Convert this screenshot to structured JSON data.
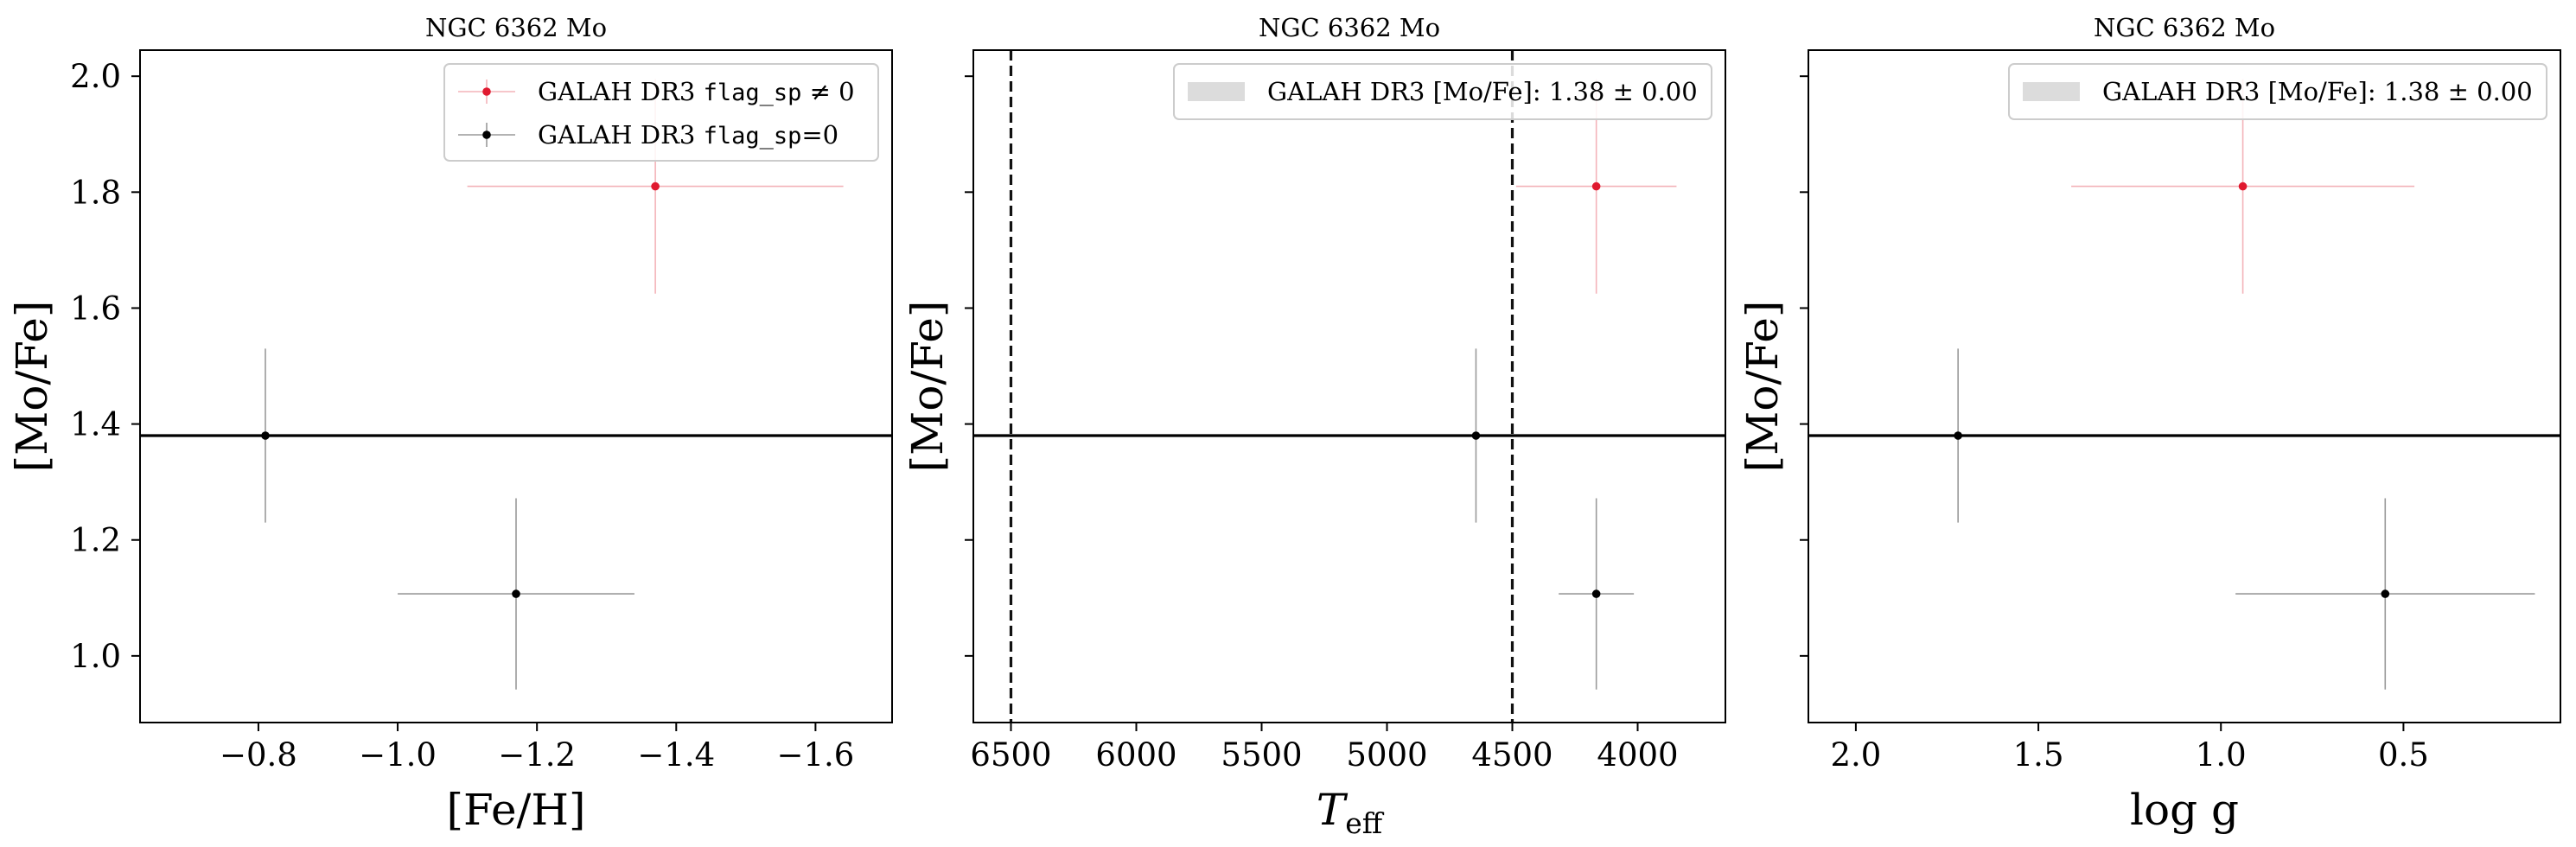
{
  "colors": {
    "flagged": "#e0192f",
    "flagged_bar": "#f3b3b9",
    "unflagged": "#000000",
    "unflagged_bar": "#9a9a9a",
    "band": "#dcdcdc",
    "axis": "#000000"
  },
  "chart_data": [
    {
      "type": "scatter",
      "title": "NGC 6362 Mo",
      "xlabel": "[Fe/H]",
      "ylabel": "[Mo/Fe]",
      "xlim": [
        -0.63,
        -1.71
      ],
      "ylim": [
        0.885,
        2.045
      ],
      "xticks": [
        -0.8,
        -1.0,
        -1.2,
        -1.4,
        -1.6
      ],
      "xtick_labels": [
        "−0.8",
        "−1.0",
        "−1.2",
        "−1.4",
        "−1.6"
      ],
      "yticks": [
        1.0,
        1.2,
        1.4,
        1.6,
        1.8,
        2.0
      ],
      "ytick_labels": [
        "1.0",
        "1.2",
        "1.4",
        "1.6",
        "1.8",
        "2.0"
      ],
      "show_ytick_labels": true,
      "hline": 1.38,
      "vlines": [],
      "legend": {
        "position": "top-right",
        "entries": [
          {
            "series": "flagged",
            "prefix": "GALAH DR3 ",
            "code": "flag_sp",
            "suffix": " ≠ 0"
          },
          {
            "series": "unflagged",
            "prefix": "GALAH DR3 ",
            "code": "flag_sp",
            "suffix": "=0"
          }
        ]
      },
      "series": [
        {
          "name": "flagged",
          "points": [
            {
              "x": -1.37,
              "y": 1.81,
              "xerr": 0.27,
              "yerr": 0.185
            }
          ]
        },
        {
          "name": "unflagged",
          "points": [
            {
              "x": -0.81,
              "y": 1.38,
              "xerr": 0.0,
              "yerr": 0.15
            },
            {
              "x": -1.17,
              "y": 1.107,
              "xerr": 0.17,
              "yerr": 0.165
            }
          ]
        }
      ]
    },
    {
      "type": "scatter",
      "title": "NGC 6362 Mo",
      "xlabel": "T",
      "xlabel_sub": "eff",
      "ylabel": "[Mo/Fe]",
      "xlim": [
        6650,
        3650
      ],
      "ylim": [
        0.885,
        2.045
      ],
      "xticks": [
        6500,
        6000,
        5500,
        5000,
        4500,
        4000
      ],
      "xtick_labels": [
        "6500",
        "6000",
        "5500",
        "5000",
        "4500",
        "4000"
      ],
      "yticks": [
        1.0,
        1.2,
        1.4,
        1.6,
        1.8,
        2.0
      ],
      "ytick_labels": [
        "1.0",
        "1.2",
        "1.4",
        "1.6",
        "1.8",
        "2.0"
      ],
      "show_ytick_labels": false,
      "hline": 1.38,
      "vlines": [
        6500,
        4500
      ],
      "legend": {
        "position": "top-right",
        "entries": [
          {
            "series": "band",
            "prefix": "GALAH DR3 [Mo/Fe]: ",
            "code": "",
            "suffix": "1.38 ± 0.00"
          }
        ]
      },
      "series": [
        {
          "name": "flagged",
          "points": [
            {
              "x": 4165,
              "y": 1.81,
              "xerr": 320,
              "yerr": 0.185
            }
          ]
        },
        {
          "name": "unflagged",
          "points": [
            {
              "x": 4645,
              "y": 1.38,
              "xerr": 0,
              "yerr": 0.15
            },
            {
              "x": 4165,
              "y": 1.107,
              "xerr": 150,
              "yerr": 0.165
            }
          ]
        }
      ]
    },
    {
      "type": "scatter",
      "title": "NGC 6362 Mo",
      "xlabel": "log g",
      "ylabel": "[Mo/Fe]",
      "xlim": [
        2.13,
        0.07
      ],
      "ylim": [
        0.885,
        2.045
      ],
      "xticks": [
        2.0,
        1.5,
        1.0,
        0.5
      ],
      "xtick_labels": [
        "2.0",
        "1.5",
        "1.0",
        "0.5"
      ],
      "yticks": [
        1.0,
        1.2,
        1.4,
        1.6,
        1.8,
        2.0
      ],
      "ytick_labels": [
        "1.0",
        "1.2",
        "1.4",
        "1.6",
        "1.8",
        "2.0"
      ],
      "show_ytick_labels": false,
      "hline": 1.38,
      "vlines": [],
      "legend": {
        "position": "top-right",
        "entries": [
          {
            "series": "band",
            "prefix": "GALAH DR3 [Mo/Fe]: ",
            "code": "",
            "suffix": "1.38 ± 0.00"
          }
        ]
      },
      "series": [
        {
          "name": "flagged",
          "points": [
            {
              "x": 0.94,
              "y": 1.81,
              "xerr": 0.47,
              "yerr": 0.185
            }
          ]
        },
        {
          "name": "unflagged",
          "points": [
            {
              "x": 1.72,
              "y": 1.38,
              "xerr": 0.0,
              "yerr": 0.15
            },
            {
              "x": 0.55,
              "y": 1.107,
              "xerr": 0.41,
              "yerr": 0.165
            }
          ]
        }
      ]
    }
  ]
}
